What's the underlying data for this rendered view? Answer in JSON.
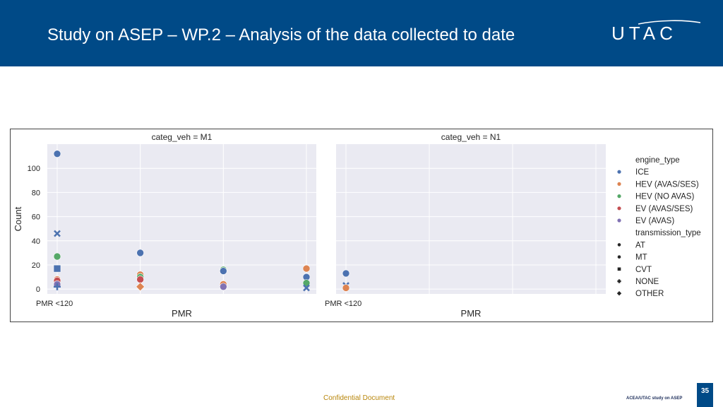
{
  "header": {
    "title": "Study on ASEP – WP.2 – Analysis of the data collected to date",
    "logo": "UTAC",
    "background_color": "#004a87"
  },
  "footer": {
    "confidential": "Confidential Document",
    "study_label": "ACEA/UTAC study on ASEP",
    "page_number": "35"
  },
  "chart_data": {
    "type": "scatter",
    "ylabel": "Count",
    "ylim": [
      -4,
      120
    ],
    "yticks": [
      0,
      20,
      40,
      60,
      80,
      100
    ],
    "grid": true,
    "legend_placement": "right",
    "legend": {
      "hue_title": "engine_type",
      "hue": [
        {
          "label": "ICE",
          "color": "#4c72b0"
        },
        {
          "label": "HEV (AVAS/SES)",
          "color": "#dd8452"
        },
        {
          "label": "HEV (NO AVAS)",
          "color": "#55a868"
        },
        {
          "label": "EV (AVAS/SES)",
          "color": "#c44e52"
        },
        {
          "label": "EV (AVAS)",
          "color": "#8172b3"
        }
      ],
      "style_title": "transmission_type",
      "style": [
        {
          "label": "AT",
          "marker": "circle"
        },
        {
          "label": "MT",
          "marker": "x"
        },
        {
          "label": "CVT",
          "marker": "square"
        },
        {
          "label": "NONE",
          "marker": "plus"
        },
        {
          "label": "OTHER",
          "marker": "diamond"
        }
      ]
    },
    "panels": [
      {
        "title": "categ_veh = M1",
        "xlabel": "PMR",
        "xcategories": [
          "PMR <120",
          "",
          "",
          ""
        ],
        "points": [
          {
            "x": 0,
            "y": 112,
            "engine": "ICE",
            "marker": "circle"
          },
          {
            "x": 0,
            "y": 46,
            "engine": "ICE",
            "marker": "x"
          },
          {
            "x": 0,
            "y": 27,
            "engine": "HEV (NO AVAS)",
            "marker": "circle"
          },
          {
            "x": 0,
            "y": 17,
            "engine": "ICE",
            "marker": "square"
          },
          {
            "x": 0,
            "y": 8,
            "engine": "HEV (AVAS/SES)",
            "marker": "circle"
          },
          {
            "x": 0,
            "y": 7,
            "engine": "EV (AVAS/SES)",
            "marker": "circle"
          },
          {
            "x": 0,
            "y": 4,
            "engine": "EV (AVAS)",
            "marker": "circle"
          },
          {
            "x": 0,
            "y": 2,
            "engine": "ICE",
            "marker": "plus"
          },
          {
            "x": 1,
            "y": 30,
            "engine": "ICE",
            "marker": "circle"
          },
          {
            "x": 1,
            "y": 12,
            "engine": "HEV (AVAS/SES)",
            "marker": "circle"
          },
          {
            "x": 1,
            "y": 10,
            "engine": "HEV (NO AVAS)",
            "marker": "circle"
          },
          {
            "x": 1,
            "y": 8,
            "engine": "EV (AVAS/SES)",
            "marker": "circle"
          },
          {
            "x": 1,
            "y": 2,
            "engine": "HEV (AVAS/SES)",
            "marker": "diamond"
          },
          {
            "x": 2,
            "y": 16,
            "engine": "HEV (NO AVAS)",
            "marker": "circle"
          },
          {
            "x": 2,
            "y": 15,
            "engine": "ICE",
            "marker": "circle"
          },
          {
            "x": 2,
            "y": 4,
            "engine": "HEV (AVAS/SES)",
            "marker": "circle"
          },
          {
            "x": 2,
            "y": 2,
            "engine": "EV (AVAS)",
            "marker": "circle"
          },
          {
            "x": 3,
            "y": 17,
            "engine": "HEV (AVAS/SES)",
            "marker": "circle"
          },
          {
            "x": 3,
            "y": 10,
            "engine": "ICE",
            "marker": "circle"
          },
          {
            "x": 3,
            "y": 5,
            "engine": "HEV (NO AVAS)",
            "marker": "circle"
          },
          {
            "x": 3,
            "y": 1,
            "engine": "ICE",
            "marker": "x"
          }
        ]
      },
      {
        "title": "categ_veh = N1",
        "xlabel": "PMR",
        "xcategories": [
          "PMR <120",
          "",
          "",
          ""
        ],
        "points": [
          {
            "x": 0,
            "y": 13,
            "engine": "ICE",
            "marker": "circle"
          },
          {
            "x": 0,
            "y": 3,
            "engine": "ICE",
            "marker": "x"
          },
          {
            "x": 0,
            "y": 1,
            "engine": "HEV (AVAS/SES)",
            "marker": "circle"
          }
        ]
      }
    ]
  }
}
